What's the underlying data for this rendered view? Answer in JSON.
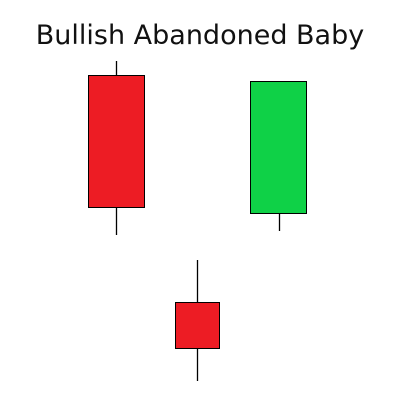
{
  "title": "Bullish Abandoned Baby"
}
